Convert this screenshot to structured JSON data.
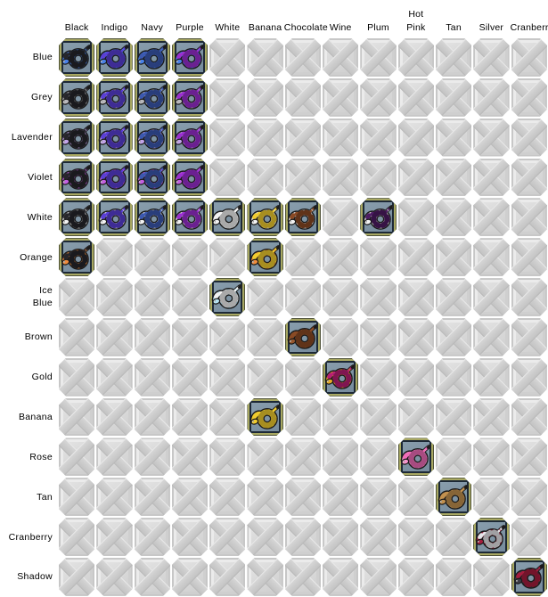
{
  "grid": {
    "columns": [
      "Black",
      "Indigo",
      "Navy",
      "Purple",
      "White",
      "Banana",
      "Chocolate",
      "Wine",
      "Plum",
      "Hot Pink",
      "Tan",
      "Silver",
      "Cranberry"
    ],
    "rows": [
      "Blue",
      "Grey",
      "Lavender",
      "Violet",
      "White",
      "Orange",
      "Ice Blue",
      "Brown",
      "Gold",
      "Banana",
      "Rose",
      "Tan",
      "Cranberry",
      "Shadow"
    ],
    "combos": {
      "Blue": [
        "Black",
        "Indigo",
        "Navy",
        "Purple"
      ],
      "Grey": [
        "Black",
        "Indigo",
        "Navy",
        "Purple"
      ],
      "Lavender": [
        "Black",
        "Indigo",
        "Navy",
        "Purple"
      ],
      "Violet": [
        "Black",
        "Indigo",
        "Navy",
        "Purple"
      ],
      "White": [
        "Black",
        "Indigo",
        "Navy",
        "Purple",
        "White",
        "Banana",
        "Chocolate",
        "Plum"
      ],
      "Orange": [
        "Black",
        "Banana"
      ],
      "Ice Blue": [
        "White"
      ],
      "Brown": [
        "Chocolate"
      ],
      "Gold": [
        "Wine"
      ],
      "Banana": [
        "Banana"
      ],
      "Rose": [
        "Hot Pink"
      ],
      "Tan": [
        "Tan"
      ],
      "Cranberry": [
        "Silver"
      ],
      "Shadow": [
        "Cranberry"
      ]
    },
    "palette": {
      "Black": "#26262b",
      "Indigo": "#5a3fd6",
      "Navy": "#3c59b0",
      "Purple": "#9a2fd0",
      "White": "#f2f2f2",
      "Banana": "#f0cc2e",
      "Chocolate": "#8a4a24",
      "Wine": "#b81f74",
      "Plum": "#4e1c64",
      "Hot Pink": "#f06cb8",
      "Tan": "#c2914f",
      "Silver": "#e6e6ea",
      "Cranberry": "#a51d3e",
      "Blue": "#4a82e8",
      "Grey": "#b9b9bd",
      "Lavender": "#c3a4ea",
      "Violet": "#c55fe3",
      "Orange": "#ef8c3e",
      "Ice Blue": "#b5e3f2",
      "Brown": "#96572e",
      "Gold": "#e8ad25",
      "Rose": "#f795cd",
      "Shadow": "#3b3b44"
    },
    "cell_style": {
      "filled_bg": "#7e93a3",
      "gold_ring": "#a8a862",
      "inner_border": "#1d2936",
      "outer_line": "#4f5238",
      "empty_bg": "#d9d9d9",
      "empty_x": "#cbcbcb",
      "snake_outline": "#1a1a1a"
    }
  }
}
